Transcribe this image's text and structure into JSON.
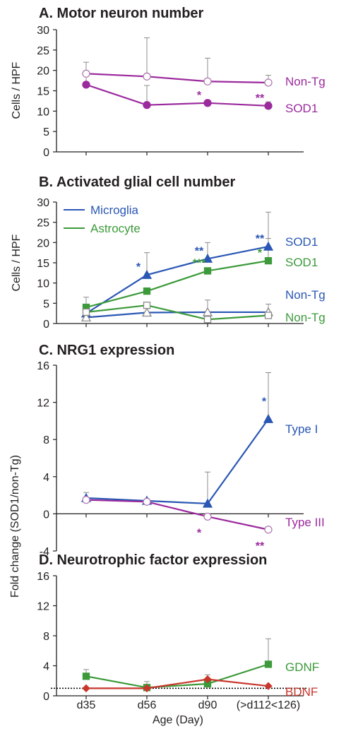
{
  "colors": {
    "purple": "#9b2a9d",
    "blue": "#2a57b4",
    "green": "#3c9a3a",
    "red": "#c8362c",
    "axis": "#231f20",
    "errorbar": "#8c8c8c"
  },
  "shared_axis": {
    "xlabel": "Age (Day)",
    "categories": [
      "d35",
      "d56",
      "d90",
      "(>d112<126)"
    ],
    "fold_ylabel": "Fold change (SOD1/non-Tg)"
  },
  "chart_data": [
    {
      "id": "A",
      "type": "line",
      "title": "A. Motor neuron number",
      "ylabel": "Cells / HPF",
      "ylim": [
        0,
        30
      ],
      "yticks": [
        "0",
        "5",
        "10",
        "15",
        "20",
        "25",
        "30"
      ],
      "categories": [
        "d35",
        "d56",
        "d90",
        "(>d112<126)"
      ],
      "series": [
        {
          "name": "Non-Tg",
          "color": "#9b2a9d",
          "marker": "open-circle",
          "values": [
            19.2,
            18.5,
            17.3,
            17.0
          ],
          "errors": [
            2.8,
            9.5,
            5.7,
            1.8
          ],
          "stars": [
            "",
            "",
            "",
            ""
          ]
        },
        {
          "name": "SOD1",
          "color": "#9b2a9d",
          "marker": "filled-circle",
          "values": [
            16.5,
            11.5,
            12.0,
            11.3
          ],
          "errors": [
            3.2,
            4.8,
            0,
            1.0
          ],
          "stars": [
            "",
            "",
            "*",
            "**"
          ]
        }
      ]
    },
    {
      "id": "B",
      "type": "line",
      "title": "B. Activated glial cell number",
      "ylabel": "Cells / HPF",
      "ylim": [
        0,
        30
      ],
      "yticks": [
        "0",
        "5",
        "10",
        "15",
        "20",
        "25",
        "30"
      ],
      "legend": [
        {
          "label": "Microglia",
          "color": "#2a57b4"
        },
        {
          "label": "Astrocyte",
          "color": "#3c9a3a"
        }
      ],
      "categories": [
        "d35",
        "d56",
        "d90",
        "(>d112<126)"
      ],
      "series": [
        {
          "name": "SOD1",
          "cell": "Microglia",
          "color": "#2a57b4",
          "marker": "filled-triangle",
          "values": [
            2.5,
            12.0,
            16.0,
            19.0
          ],
          "errors": [
            0,
            5.5,
            4.0,
            8.5
          ],
          "stars": [
            "",
            "*",
            "**",
            "**"
          ]
        },
        {
          "name": "SOD1",
          "cell": "Astrocyte",
          "color": "#3c9a3a",
          "marker": "filled-square",
          "values": [
            4.0,
            8.0,
            13.0,
            15.5
          ],
          "errors": [
            2.5,
            0,
            0,
            5.5
          ],
          "stars": [
            "",
            "",
            "***",
            "*"
          ]
        },
        {
          "name": "Non-Tg",
          "cell": "Microglia",
          "color": "#2a57b4",
          "marker": "open-triangle",
          "values": [
            1.5,
            2.7,
            2.8,
            2.8
          ],
          "errors": [
            0,
            0,
            3.0,
            2.0
          ],
          "stars": [
            "",
            "",
            "",
            ""
          ]
        },
        {
          "name": "Non-Tg",
          "cell": "Astrocyte",
          "color": "#3c9a3a",
          "marker": "open-square",
          "values": [
            2.8,
            4.5,
            1.0,
            2.0
          ],
          "errors": [
            0,
            0,
            0,
            0
          ],
          "stars": [
            "",
            "",
            "",
            ""
          ]
        }
      ]
    },
    {
      "id": "C",
      "type": "line",
      "title": "C. NRG1 expression",
      "ylim": [
        -4,
        16
      ],
      "yticks": [
        "-4",
        "0",
        "4",
        "8",
        "12",
        "16"
      ],
      "categories": [
        "d35",
        "d56",
        "d90",
        "(>d112<126)"
      ],
      "series": [
        {
          "name": "Type I",
          "color": "#2a57b4",
          "marker": "filled-triangle",
          "values": [
            1.7,
            1.4,
            1.1,
            10.2
          ],
          "errors": [
            0.6,
            0,
            3.4,
            5.0
          ],
          "stars": [
            "",
            "",
            "",
            "*"
          ]
        },
        {
          "name": "Type III",
          "color": "#9b2a9d",
          "marker": "open-circle",
          "values": [
            1.5,
            1.3,
            -0.3,
            -1.7
          ],
          "errors": [
            0,
            0,
            0,
            0
          ],
          "stars": [
            "",
            "",
            "*",
            "**"
          ]
        }
      ]
    },
    {
      "id": "D",
      "type": "line",
      "title": "D. Neurotrophic factor expression",
      "ylim": [
        0,
        16
      ],
      "yticks": [
        "0",
        "4",
        "8",
        "12",
        "16"
      ],
      "reference_line": 1,
      "categories": [
        "d35",
        "d56",
        "d90",
        "(>d112<126)"
      ],
      "series": [
        {
          "name": "GDNF",
          "color": "#3c9a3a",
          "marker": "filled-square",
          "values": [
            2.6,
            1.1,
            1.6,
            4.2
          ],
          "errors": [
            0.9,
            0.8,
            0,
            3.4
          ],
          "stars": [
            "",
            "",
            "",
            ""
          ]
        },
        {
          "name": "BDNF",
          "color": "#c8362c",
          "marker": "filled-diamond",
          "values": [
            1.0,
            1.0,
            2.2,
            1.3
          ],
          "errors": [
            0,
            0,
            0.6,
            0
          ],
          "stars": [
            "",
            "",
            "",
            ""
          ]
        }
      ]
    }
  ]
}
